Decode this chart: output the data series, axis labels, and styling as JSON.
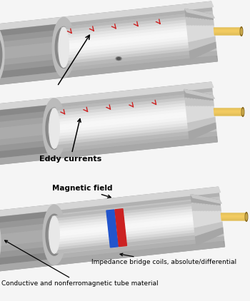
{
  "bg_color": "#f5f5f5",
  "annotations": {
    "magnetic_field": "Magnetic field",
    "impedance": "Impedance bridge coils, absolute/differential",
    "conductive": "Conductive and nonferromagnetic tube material",
    "eddy": "Eddy currents"
  },
  "coil_blue": "#2255cc",
  "coil_red": "#cc2222",
  "eddy_red": "#cc2222",
  "magnetic_green": "#00aa55",
  "probe_gold": "#c8a84a",
  "probe_gold_dark": "#8a6a20",
  "probe_gold_light": "#e0c870",
  "tube_outer_light": "#e8e8e8",
  "tube_outer_mid": "#c8c8c8",
  "tube_outer_dark": "#a0a0a0",
  "tube_inner_light": "#f0f0f0",
  "tube_inner_mid": "#d8d8d8",
  "tube_inner_dark": "#b0b0b0",
  "tube_shadow": "#787878",
  "tube_rim": "#909090"
}
